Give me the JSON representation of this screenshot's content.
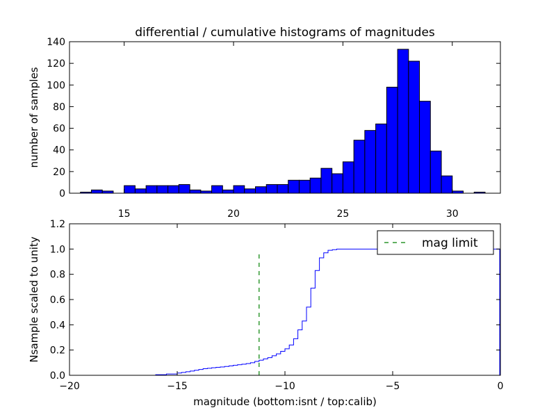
{
  "chart_data": [
    {
      "type": "bar",
      "title": "differential / cumulative histograms of magnitudes",
      "xlabel": "",
      "ylabel": "number of samples",
      "xlim": [
        12.5,
        32.2
      ],
      "ylim": [
        0,
        140
      ],
      "xticks": [
        15,
        20,
        25,
        30
      ],
      "yticks": [
        0,
        20,
        40,
        60,
        80,
        100,
        120,
        140
      ],
      "bar_color": "#0000ff",
      "bins": [
        {
          "x0": 13.0,
          "x1": 13.5,
          "count": 1
        },
        {
          "x0": 13.5,
          "x1": 14.0,
          "count": 3
        },
        {
          "x0": 14.0,
          "x1": 14.5,
          "count": 2
        },
        {
          "x0": 14.5,
          "x1": 15.0,
          "count": 0
        },
        {
          "x0": 15.0,
          "x1": 15.5,
          "count": 7
        },
        {
          "x0": 15.5,
          "x1": 16.0,
          "count": 4
        },
        {
          "x0": 16.0,
          "x1": 16.5,
          "count": 7
        },
        {
          "x0": 16.5,
          "x1": 17.0,
          "count": 7
        },
        {
          "x0": 17.0,
          "x1": 17.5,
          "count": 7
        },
        {
          "x0": 17.5,
          "x1": 18.0,
          "count": 8
        },
        {
          "x0": 18.0,
          "x1": 18.5,
          "count": 3
        },
        {
          "x0": 18.5,
          "x1": 19.0,
          "count": 2
        },
        {
          "x0": 19.0,
          "x1": 19.5,
          "count": 7
        },
        {
          "x0": 19.5,
          "x1": 20.0,
          "count": 3
        },
        {
          "x0": 20.0,
          "x1": 20.5,
          "count": 7
        },
        {
          "x0": 20.5,
          "x1": 21.0,
          "count": 4
        },
        {
          "x0": 21.0,
          "x1": 21.5,
          "count": 6
        },
        {
          "x0": 21.5,
          "x1": 22.0,
          "count": 8
        },
        {
          "x0": 22.0,
          "x1": 22.5,
          "count": 8
        },
        {
          "x0": 22.5,
          "x1": 23.0,
          "count": 12
        },
        {
          "x0": 23.0,
          "x1": 23.5,
          "count": 12
        },
        {
          "x0": 23.5,
          "x1": 24.0,
          "count": 14
        },
        {
          "x0": 24.0,
          "x1": 24.5,
          "count": 23
        },
        {
          "x0": 24.5,
          "x1": 25.0,
          "count": 18
        },
        {
          "x0": 25.0,
          "x1": 25.5,
          "count": 29
        },
        {
          "x0": 25.5,
          "x1": 26.0,
          "count": 49
        },
        {
          "x0": 26.0,
          "x1": 26.5,
          "count": 58
        },
        {
          "x0": 26.5,
          "x1": 27.0,
          "count": 64
        },
        {
          "x0": 27.0,
          "x1": 27.5,
          "count": 98
        },
        {
          "x0": 27.5,
          "x1": 28.0,
          "count": 133
        },
        {
          "x0": 28.0,
          "x1": 28.5,
          "count": 122
        },
        {
          "x0": 28.5,
          "x1": 29.0,
          "count": 85
        },
        {
          "x0": 29.0,
          "x1": 29.5,
          "count": 39
        },
        {
          "x0": 29.5,
          "x1": 30.0,
          "count": 16
        },
        {
          "x0": 30.0,
          "x1": 30.5,
          "count": 2
        },
        {
          "x0": 30.5,
          "x1": 31.0,
          "count": 0
        },
        {
          "x0": 31.0,
          "x1": 31.5,
          "count": 1
        }
      ]
    },
    {
      "type": "line",
      "title": "",
      "xlabel": "magnitude (bottom:isnt / top:calib)",
      "ylabel": "Nsample scaled to unity",
      "xlim": [
        -20,
        0
      ],
      "ylim": [
        0,
        1.2
      ],
      "xticks": [
        -20,
        -15,
        -10,
        -5,
        0
      ],
      "yticks": [
        0.0,
        0.2,
        0.4,
        0.6,
        0.8,
        1.0,
        1.2
      ],
      "series": [
        {
          "name": "",
          "color": "#0000ff",
          "style": "step",
          "x": [
            -20.0,
            -18.0,
            -16.0,
            -15.5,
            -15.0,
            -14.8,
            -14.6,
            -14.4,
            -14.2,
            -14.0,
            -13.8,
            -13.6,
            -13.4,
            -13.2,
            -13.0,
            -12.8,
            -12.6,
            -12.4,
            -12.2,
            -12.0,
            -11.8,
            -11.6,
            -11.4,
            -11.2,
            -11.0,
            -10.8,
            -10.6,
            -10.4,
            -10.2,
            -10.0,
            -9.8,
            -9.6,
            -9.4,
            -9.2,
            -9.0,
            -8.8,
            -8.6,
            -8.4,
            -8.2,
            -8.0,
            -7.8,
            -7.6,
            -7.4,
            -7.2,
            -7.0,
            -6.0,
            -4.0,
            -2.0,
            -0.05
          ],
          "y": [
            0.0,
            0.0,
            0.005,
            0.01,
            0.018,
            0.023,
            0.028,
            0.034,
            0.04,
            0.046,
            0.052,
            0.056,
            0.06,
            0.063,
            0.066,
            0.07,
            0.074,
            0.079,
            0.084,
            0.088,
            0.093,
            0.1,
            0.11,
            0.12,
            0.13,
            0.14,
            0.155,
            0.17,
            0.19,
            0.21,
            0.24,
            0.29,
            0.36,
            0.43,
            0.54,
            0.69,
            0.83,
            0.93,
            0.97,
            0.99,
            0.995,
            1.0,
            1.0,
            1.0,
            1.0,
            1.0,
            1.0,
            1.0,
            1.0
          ]
        }
      ],
      "vlines": [
        {
          "name": "mag limit",
          "x": -11.2,
          "y0": 0.0,
          "y1": 0.97,
          "color": "#008000",
          "style": "dashed"
        }
      ],
      "legend": {
        "entries": [
          "mag limit"
        ],
        "placement": "top-right"
      }
    }
  ]
}
